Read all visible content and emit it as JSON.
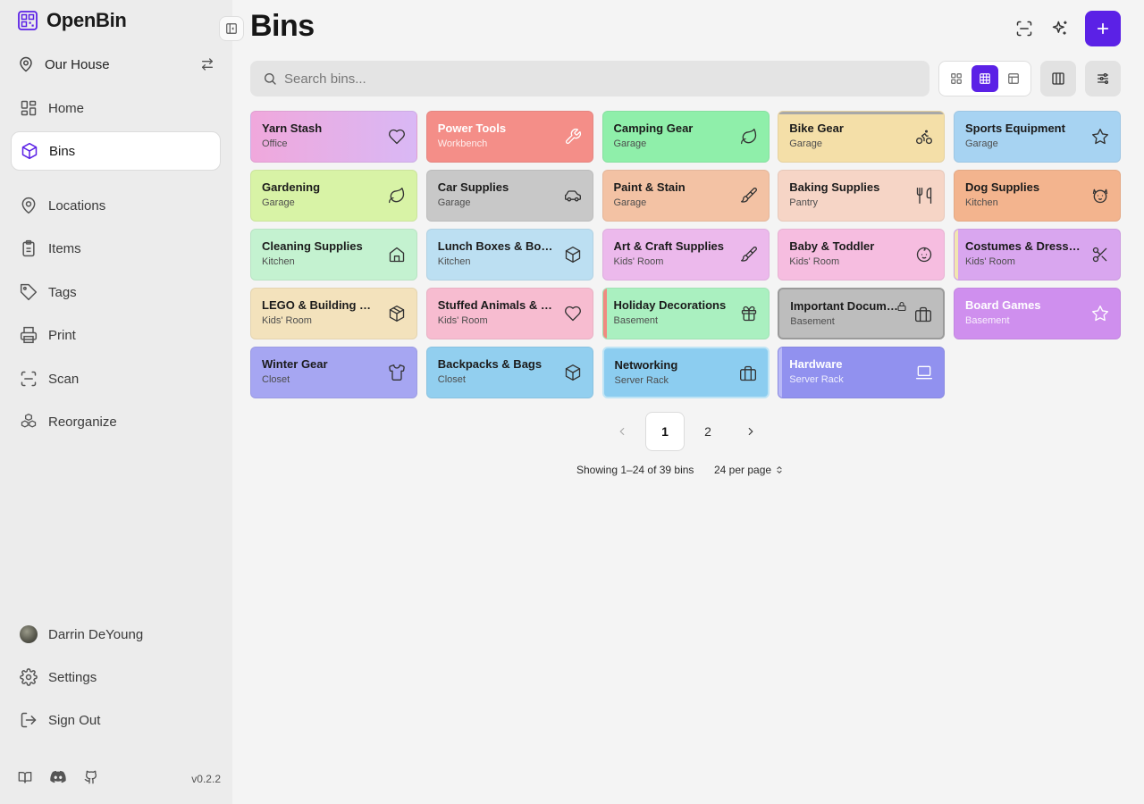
{
  "app": {
    "name": "OpenBin",
    "version": "v0.2.2"
  },
  "sidebar": {
    "location": "Our House",
    "nav": [
      {
        "label": "Home",
        "icon": "home-grid-icon"
      },
      {
        "label": "Bins",
        "icon": "box-icon",
        "active": true
      },
      {
        "label": "Locations",
        "icon": "map-pin-icon"
      },
      {
        "label": "Items",
        "icon": "clipboard-icon"
      },
      {
        "label": "Tags",
        "icon": "tag-icon"
      },
      {
        "label": "Print",
        "icon": "printer-icon"
      },
      {
        "label": "Scan",
        "icon": "scan-icon"
      },
      {
        "label": "Reorganize",
        "icon": "cubes-icon"
      }
    ],
    "user": "Darrin DeYoung",
    "settings": "Settings",
    "signout": "Sign Out"
  },
  "main": {
    "title": "Bins",
    "search_placeholder": "Search bins...",
    "accent": "#5b21e6"
  },
  "bins": [
    {
      "name": "Yarn Stash",
      "location": "Office",
      "icon": "heart-icon",
      "color": "linear-gradient(90deg,#f0a8dc,#d9b8f5)"
    },
    {
      "name": "Power Tools",
      "location": "Workbench",
      "icon": "wrench-icon",
      "color": "#f48e88",
      "light": true
    },
    {
      "name": "Camping Gear",
      "location": "Garage",
      "icon": "leaf-icon",
      "color": "#8fefaa"
    },
    {
      "name": "Bike Gear",
      "location": "Garage",
      "icon": "bike-icon",
      "color": "#f4dfa8",
      "topbar": "#a8a8a8"
    },
    {
      "name": "Sports Equipment",
      "location": "Garage",
      "icon": "star-icon",
      "color": "#a7d3f2"
    },
    {
      "name": "Gardening",
      "location": "Garage",
      "icon": "leaf-icon",
      "color": "#d8f3a6"
    },
    {
      "name": "Car Supplies",
      "location": "Garage",
      "icon": "car-icon",
      "color": "#c8c8c8"
    },
    {
      "name": "Paint & Stain",
      "location": "Garage",
      "icon": "paintbrush-icon",
      "color": "#f3c2a4"
    },
    {
      "name": "Baking Supplies",
      "location": "Pantry",
      "icon": "utensils-icon",
      "color": "#f6d5c6"
    },
    {
      "name": "Dog Supplies",
      "location": "Kitchen",
      "icon": "dog-icon",
      "color": "#f3b48e"
    },
    {
      "name": "Cleaning Supplies",
      "location": "Kitchen",
      "icon": "house-icon",
      "color": "#c4f2d0"
    },
    {
      "name": "Lunch Boxes & Bottles",
      "location": "Kitchen",
      "icon": "cube-icon",
      "color": "#bcdff2"
    },
    {
      "name": "Art & Craft Supplies",
      "location": "Kids' Room",
      "icon": "paintbrush-icon",
      "color": "#ecb9ec"
    },
    {
      "name": "Baby & Toddler",
      "location": "Kids' Room",
      "icon": "baby-icon",
      "color": "#f6bde0"
    },
    {
      "name": "Costumes & Dress-Up",
      "location": "Kids' Room",
      "icon": "scissors-icon",
      "color": "#d9a6ef",
      "leftbar": "#f2e6b0"
    },
    {
      "name": "LEGO & Building Toys",
      "location": "Kids' Room",
      "icon": "package-icon",
      "color": "#f3e2bc"
    },
    {
      "name": "Stuffed Animals & Plush",
      "location": "Kids' Room",
      "icon": "heart-icon",
      "color": "#f7bcd0"
    },
    {
      "name": "Holiday Decorations",
      "location": "Basement",
      "icon": "gift-icon",
      "color": "#aaf0c0",
      "leftbar": "#f08a80"
    },
    {
      "name": "Important Documents",
      "location": "Basement",
      "icon": "briefcase-icon",
      "color": "#bdbdbd",
      "outlined": true,
      "locked": true
    },
    {
      "name": "Board Games",
      "location": "Basement",
      "icon": "star-icon",
      "color": "#cf8fee",
      "light": true
    },
    {
      "name": "Winter Gear",
      "location": "Closet",
      "icon": "shirt-icon",
      "color": "#a6a6f2"
    },
    {
      "name": "Backpacks & Bags",
      "location": "Closet",
      "icon": "cube-icon",
      "color": "#92cfef"
    },
    {
      "name": "Networking",
      "location": "Server Rack",
      "icon": "briefcase-icon",
      "color": "#8ccdf0",
      "outline_color": "#bfe4f5"
    },
    {
      "name": "Hardware",
      "location": "Server Rack",
      "icon": "laptop-icon",
      "color": "#9191ef",
      "light": true,
      "leftbar": "#b9b9f7"
    }
  ],
  "pagination": {
    "pages": [
      "1",
      "2"
    ],
    "current": "1",
    "showing": "Showing 1–24 of 39 bins",
    "per_page": "24 per page"
  }
}
